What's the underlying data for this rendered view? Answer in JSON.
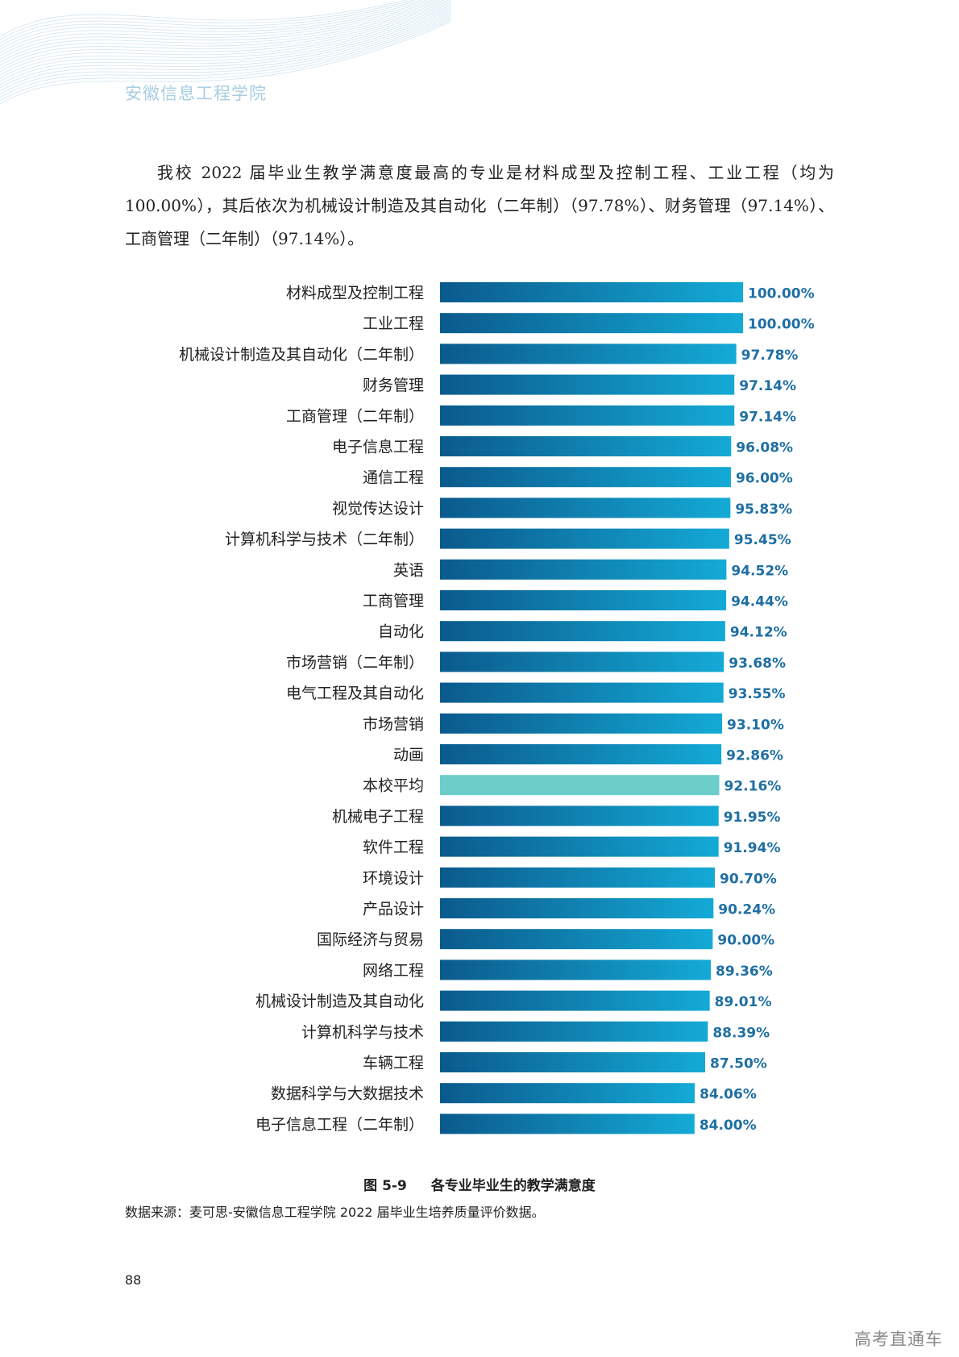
{
  "header": {
    "school_name": "安徽信息工程学院"
  },
  "paragraph": "我校 2022 届毕业生教学满意度最高的专业是材料成型及控制工程、工业工程（均为100.00%），其后依次为机械设计制造及其自动化（二年制）（97.78%）、财务管理（97.14%）、工商管理（二年制）（97.14%）。",
  "chart_data": {
    "type": "bar",
    "orientation": "horizontal",
    "title": "各专业毕业生的教学满意度",
    "xlim": [
      0,
      100
    ],
    "unit": "%",
    "categories": [
      "材料成型及控制工程",
      "工业工程",
      "机械设计制造及其自动化（二年制）",
      "财务管理",
      "工商管理（二年制）",
      "电子信息工程",
      "通信工程",
      "视觉传达设计",
      "计算机科学与技术（二年制）",
      "英语",
      "工商管理",
      "自动化",
      "市场营销（二年制）",
      "电气工程及其自动化",
      "市场营销",
      "动画",
      "本校平均",
      "机械电子工程",
      "软件工程",
      "环境设计",
      "产品设计",
      "国际经济与贸易",
      "网络工程",
      "机械设计制造及其自动化",
      "计算机科学与技术",
      "车辆工程",
      "数据科学与大数据技术",
      "电子信息工程（二年制）"
    ],
    "values": [
      100.0,
      100.0,
      97.78,
      97.14,
      97.14,
      96.08,
      96.0,
      95.83,
      95.45,
      94.52,
      94.44,
      94.12,
      93.68,
      93.55,
      93.1,
      92.86,
      92.16,
      91.95,
      91.94,
      90.7,
      90.24,
      90.0,
      89.36,
      89.01,
      88.39,
      87.5,
      84.06,
      84.0
    ],
    "labels": [
      "100.00%",
      "100.00%",
      "97.78%",
      "97.14%",
      "97.14%",
      "96.08%",
      "96.00%",
      "95.83%",
      "95.45%",
      "94.52%",
      "94.44%",
      "94.12%",
      "93.68%",
      "93.55%",
      "93.10%",
      "92.86%",
      "92.16%",
      "91.95%",
      "91.94%",
      "90.70%",
      "90.24%",
      "90.00%",
      "89.36%",
      "89.01%",
      "88.39%",
      "87.50%",
      "84.06%",
      "84.00%"
    ],
    "highlight_category": "本校平均",
    "colors": {
      "bar_start": "#0b5a8c",
      "bar_end": "#14aad6",
      "highlight": "#6ccdc9",
      "value_label": "#1f6fa3",
      "category_label": "#222222"
    }
  },
  "figure": {
    "number": "图 5-9",
    "caption": "各专业毕业生的教学满意度"
  },
  "source": "数据来源：麦可思-安徽信息工程学院 2022 届毕业生培养质量评价数据。",
  "page_number": "88",
  "watermark": "高考直通车"
}
